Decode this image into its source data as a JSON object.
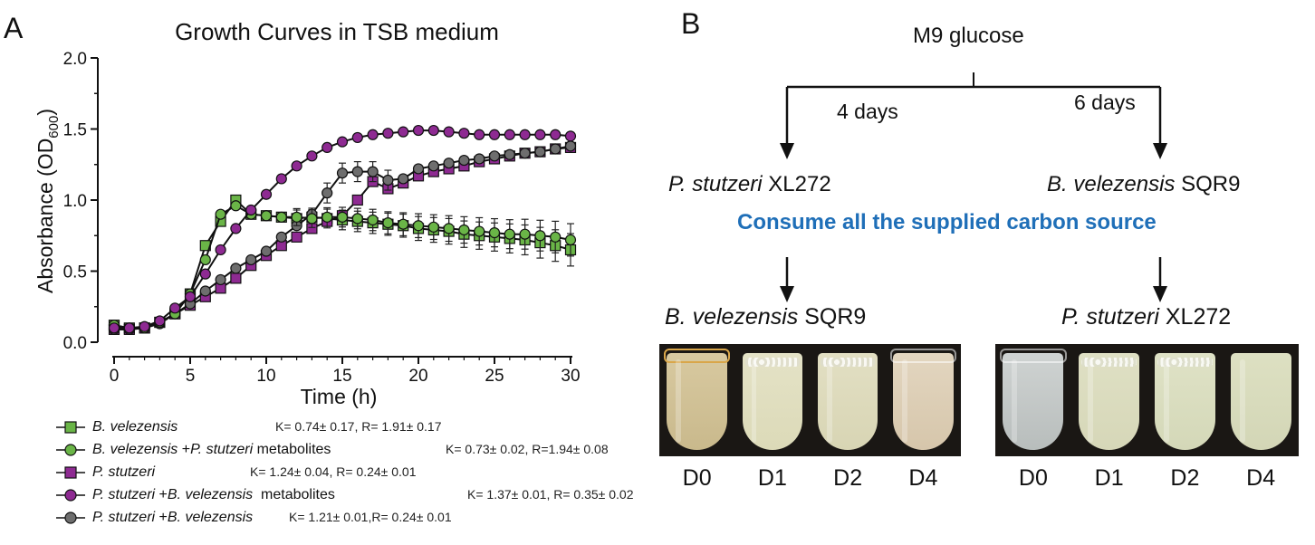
{
  "panel_a": {
    "label": "A",
    "title": "Growth Curves in TSB medium"
  },
  "panel_b": {
    "label": "B",
    "top": "M9 glucose",
    "left_days": "4 days",
    "right_days": "6 days",
    "left_first_italic": "P. stutzeri",
    "left_first_rest": " XL272",
    "right_first_italic": "B. velezensis",
    "right_first_rest": " SQR9",
    "consume": "Consume all the supplied carbon source",
    "left_second_italic": "B. velezensis",
    "left_second_rest": " SQR9",
    "right_second_italic": "P. stutzeri",
    "right_second_rest": " XL272",
    "left_tubes": [
      "D0",
      "D1",
      "D2",
      "D4"
    ],
    "right_tubes": [
      "D0",
      "D1",
      "D2",
      "D4"
    ],
    "accent_color": "#1f6fb8"
  },
  "chart_data": {
    "type": "line",
    "title": "Growth Curves in TSB medium",
    "xlabel": "Time (h)",
    "ylabel": "Absorbance (OD600)",
    "ylabel_main": "Absorbance (OD",
    "ylabel_sub": "600",
    "ylabel_end": ")",
    "xlim": [
      0,
      30
    ],
    "ylim": [
      0.0,
      2.0
    ],
    "xticks": [
      "0",
      "5",
      "10",
      "15",
      "20",
      "25",
      "30"
    ],
    "yticks": [
      "0.0",
      "0.5",
      "1.0",
      "1.5",
      "2.0"
    ],
    "grid": false,
    "legend_position": "bottom",
    "x": [
      0,
      1,
      2,
      3,
      4,
      5,
      6,
      7,
      8,
      9,
      10,
      11,
      12,
      13,
      14,
      15,
      16,
      17,
      18,
      19,
      20,
      21,
      22,
      23,
      24,
      25,
      26,
      27,
      28,
      29,
      30
    ],
    "series": [
      {
        "name": "B. velezensis",
        "name_parts": [
          "B. velezensis"
        ],
        "stats": "K= 0.74± 0.17, R= 1.91± 0.17",
        "marker": "square",
        "color": "#6ab547",
        "values": [
          0.12,
          0.1,
          0.1,
          0.14,
          0.2,
          0.34,
          0.68,
          0.85,
          1.0,
          0.9,
          0.89,
          0.88,
          0.87,
          0.88,
          0.87,
          0.86,
          0.85,
          0.84,
          0.83,
          0.82,
          0.8,
          0.79,
          0.78,
          0.76,
          0.75,
          0.74,
          0.73,
          0.72,
          0.7,
          0.68,
          0.65
        ]
      },
      {
        "name": "B. velezensis +P. stutzeri metabolites",
        "name_parts": [
          "B. velezensis",
          " +",
          "P. stutzeri",
          " metabolites"
        ],
        "stats": "K= 0.73± 0.02, R=1.94± 0.08",
        "marker": "circle",
        "color": "#6ab547",
        "values": [
          0.12,
          0.1,
          0.1,
          0.14,
          0.2,
          0.34,
          0.58,
          0.9,
          0.96,
          0.9,
          0.89,
          0.88,
          0.88,
          0.87,
          0.88,
          0.88,
          0.87,
          0.86,
          0.84,
          0.83,
          0.82,
          0.81,
          0.8,
          0.79,
          0.78,
          0.77,
          0.76,
          0.76,
          0.75,
          0.74,
          0.72
        ]
      },
      {
        "name": "P. stutzeri",
        "name_parts": [
          "P. stutzeri"
        ],
        "stats": "K= 1.24± 0.04, R= 0.24± 0.01",
        "marker": "square",
        "color": "#8e2a92",
        "values": [
          0.09,
          0.09,
          0.1,
          0.14,
          0.2,
          0.26,
          0.32,
          0.38,
          0.45,
          0.54,
          0.61,
          0.68,
          0.74,
          0.8,
          0.85,
          0.89,
          1.0,
          1.13,
          1.08,
          1.12,
          1.17,
          1.2,
          1.22,
          1.24,
          1.27,
          1.29,
          1.31,
          1.33,
          1.34,
          1.36,
          1.37
        ]
      },
      {
        "name": "P. stutzeri +B. velezensis metabolites",
        "name_parts": [
          "P. stutzeri",
          " +",
          "B. velezensis",
          "  metabolites"
        ],
        "stats": "K= 1.37± 0.01,  R= 0.35± 0.02",
        "marker": "circle",
        "color": "#8e2a92",
        "values": [
          0.1,
          0.1,
          0.11,
          0.15,
          0.24,
          0.32,
          0.48,
          0.65,
          0.8,
          0.93,
          1.04,
          1.15,
          1.24,
          1.31,
          1.37,
          1.41,
          1.44,
          1.46,
          1.47,
          1.48,
          1.49,
          1.49,
          1.48,
          1.47,
          1.46,
          1.46,
          1.46,
          1.46,
          1.46,
          1.46,
          1.45
        ]
      },
      {
        "name": "P. stutzeri +B. velezensis",
        "name_parts": [
          "P. stutzeri",
          " +",
          "B. velezensis"
        ],
        "stats": "K= 1.21± 0.01,R= 0.24± 0.01",
        "marker": "circle",
        "color": "#6e6e6e",
        "values": [
          0.09,
          0.09,
          0.1,
          0.13,
          0.2,
          0.27,
          0.36,
          0.44,
          0.52,
          0.58,
          0.64,
          0.74,
          0.82,
          0.9,
          1.05,
          1.19,
          1.2,
          1.2,
          1.14,
          1.15,
          1.22,
          1.24,
          1.26,
          1.28,
          1.29,
          1.31,
          1.32,
          1.33,
          1.34,
          1.36,
          1.38
        ]
      }
    ]
  }
}
